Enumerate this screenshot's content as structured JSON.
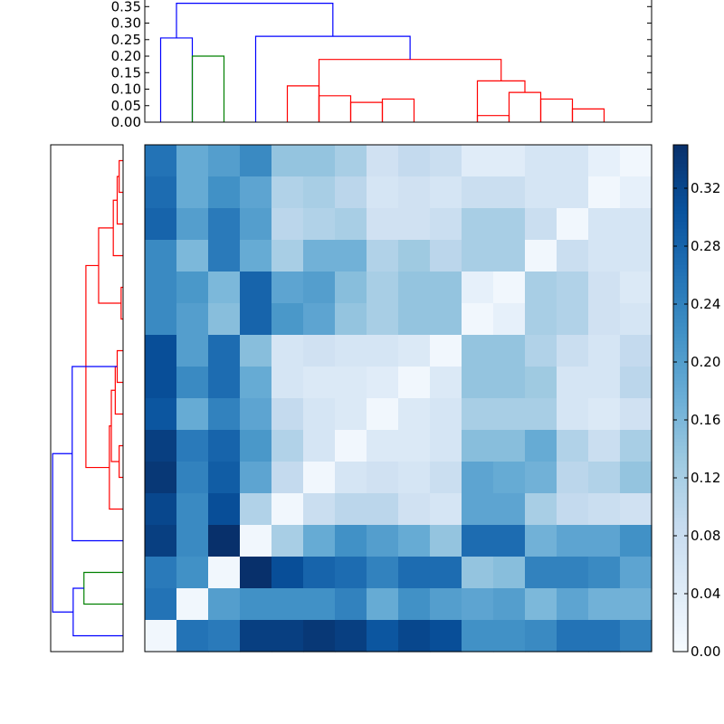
{
  "chart_data": {
    "type": "heatmap",
    "title": "",
    "xlabel": "",
    "ylabel": "",
    "n": 16,
    "matrix": [
      [
        0.26,
        0.18,
        0.2,
        0.23,
        0.14,
        0.14,
        0.12,
        0.07,
        0.09,
        0.08,
        0.04,
        0.04,
        0.06,
        0.06,
        0.03,
        0.01
      ],
      [
        0.27,
        0.18,
        0.22,
        0.19,
        0.11,
        0.12,
        0.1,
        0.06,
        0.07,
        0.06,
        0.08,
        0.08,
        0.06,
        0.06,
        0.01,
        0.03
      ],
      [
        0.28,
        0.2,
        0.25,
        0.2,
        0.1,
        0.11,
        0.12,
        0.07,
        0.07,
        0.08,
        0.12,
        0.12,
        0.08,
        0.01,
        0.06,
        0.06
      ],
      [
        0.23,
        0.16,
        0.25,
        0.18,
        0.12,
        0.17,
        0.17,
        0.11,
        0.13,
        0.1,
        0.12,
        0.12,
        0.01,
        0.08,
        0.06,
        0.06
      ],
      [
        0.23,
        0.21,
        0.16,
        0.28,
        0.19,
        0.2,
        0.15,
        0.12,
        0.14,
        0.14,
        0.03,
        0.01,
        0.12,
        0.11,
        0.07,
        0.05
      ],
      [
        0.23,
        0.2,
        0.15,
        0.28,
        0.21,
        0.19,
        0.14,
        0.12,
        0.14,
        0.14,
        0.01,
        0.03,
        0.12,
        0.11,
        0.07,
        0.06
      ],
      [
        0.31,
        0.2,
        0.27,
        0.15,
        0.06,
        0.07,
        0.06,
        0.06,
        0.05,
        0.01,
        0.14,
        0.14,
        0.11,
        0.08,
        0.06,
        0.09
      ],
      [
        0.31,
        0.23,
        0.27,
        0.18,
        0.06,
        0.05,
        0.05,
        0.04,
        0.01,
        0.05,
        0.14,
        0.14,
        0.13,
        0.06,
        0.06,
        0.1
      ],
      [
        0.3,
        0.18,
        0.24,
        0.19,
        0.09,
        0.06,
        0.05,
        0.01,
        0.05,
        0.06,
        0.12,
        0.12,
        0.12,
        0.06,
        0.05,
        0.07
      ],
      [
        0.33,
        0.25,
        0.28,
        0.21,
        0.11,
        0.06,
        0.01,
        0.05,
        0.05,
        0.06,
        0.15,
        0.15,
        0.18,
        0.11,
        0.08,
        0.12
      ],
      [
        0.34,
        0.24,
        0.29,
        0.19,
        0.09,
        0.01,
        0.06,
        0.07,
        0.06,
        0.08,
        0.19,
        0.18,
        0.17,
        0.1,
        0.11,
        0.14
      ],
      [
        0.32,
        0.23,
        0.31,
        0.11,
        0.01,
        0.08,
        0.1,
        0.1,
        0.07,
        0.06,
        0.19,
        0.19,
        0.12,
        0.09,
        0.08,
        0.07
      ],
      [
        0.33,
        0.23,
        0.35,
        0.01,
        0.12,
        0.18,
        0.22,
        0.2,
        0.18,
        0.14,
        0.27,
        0.27,
        0.17,
        0.19,
        0.19,
        0.22
      ],
      [
        0.25,
        0.22,
        0.01,
        0.35,
        0.31,
        0.28,
        0.27,
        0.24,
        0.27,
        0.27,
        0.14,
        0.15,
        0.24,
        0.24,
        0.23,
        0.19
      ],
      [
        0.26,
        0.01,
        0.2,
        0.22,
        0.22,
        0.22,
        0.24,
        0.18,
        0.22,
        0.2,
        0.19,
        0.2,
        0.16,
        0.19,
        0.17,
        0.17
      ],
      [
        0.01,
        0.26,
        0.25,
        0.33,
        0.33,
        0.34,
        0.33,
        0.3,
        0.32,
        0.31,
        0.22,
        0.22,
        0.23,
        0.26,
        0.26,
        0.24
      ]
    ],
    "colorbar": {
      "min": 0.0,
      "max": 0.35,
      "ticks": [
        "0.00",
        "0.04",
        "0.08",
        "0.12",
        "0.16",
        "0.20",
        "0.24",
        "0.28",
        "0.32"
      ],
      "tick_values": [
        0.0,
        0.04,
        0.08,
        0.12,
        0.16,
        0.2,
        0.24,
        0.28,
        0.32
      ],
      "colormap": "Blues"
    },
    "top_dendrogram": {
      "ylim": [
        0,
        0.37
      ],
      "yticks": [
        "0.00",
        "0.05",
        "0.10",
        "0.15",
        "0.20",
        "0.25",
        "0.30",
        "0.35"
      ],
      "ytick_values": [
        0.0,
        0.05,
        0.1,
        0.15,
        0.2,
        0.25,
        0.3,
        0.35
      ],
      "links": [
        {
          "x": [
            0.5,
            1.5
          ],
          "h": 0.255,
          "color": "#0000ff"
        },
        {
          "x": [
            1.5,
            2.5
          ],
          "h": 0.2,
          "color": "#008000"
        },
        {
          "x": [
            7.5,
            8.5
          ],
          "h": 0.07,
          "color": "#ff0000"
        },
        {
          "x": [
            6.5,
            7.5
          ],
          "h": 0.06,
          "color": "#ff0000"
        },
        {
          "x": [
            5.5,
            6.5
          ],
          "h": 0.08,
          "color": "#ff0000"
        },
        {
          "x": [
            4.5,
            5.5
          ],
          "h": 0.11,
          "color": "#ff0000"
        },
        {
          "x": [
            10.5,
            11.5
          ],
          "h": 0.02,
          "color": "#ff0000"
        },
        {
          "x": [
            13.5,
            14.5
          ],
          "h": 0.04,
          "color": "#ff0000"
        },
        {
          "x": [
            12.5,
            13.5
          ],
          "h": 0.07,
          "color": "#ff0000"
        },
        {
          "x": [
            11.5,
            12.5
          ],
          "h": 0.09,
          "color": "#ff0000"
        },
        {
          "x": [
            10.5,
            12.0
          ],
          "h": 0.125,
          "color": "#ff0000"
        },
        {
          "x": [
            5.5,
            11.25
          ],
          "h": 0.19,
          "color": "#ff0000"
        },
        {
          "x": [
            3.5,
            8.375
          ],
          "h": 0.26,
          "color": "#0000ff"
        },
        {
          "x": [
            1.0,
            5.9375
          ],
          "h": 0.36,
          "color": "#0000ff"
        }
      ]
    },
    "left_dendrogram": {
      "links": [
        {
          "y": [
            0.5,
            1.5
          ],
          "h": 0.02,
          "color": "#ff0000"
        },
        {
          "y": [
            1.0,
            2.5
          ],
          "h": 0.03,
          "color": "#ff0000"
        },
        {
          "y": [
            1.75,
            3.5
          ],
          "h": 0.05,
          "color": "#ff0000"
        },
        {
          "y": [
            4.5,
            5.5
          ],
          "h": 0.01,
          "color": "#ff0000"
        },
        {
          "y": [
            2.625,
            5.0
          ],
          "h": 0.125,
          "color": "#ff0000"
        },
        {
          "y": [
            6.5,
            7.5
          ],
          "h": 0.03,
          "color": "#ff0000"
        },
        {
          "y": [
            7.0,
            8.5
          ],
          "h": 0.04,
          "color": "#ff0000"
        },
        {
          "y": [
            9.5,
            10.5
          ],
          "h": 0.02,
          "color": "#ff0000"
        },
        {
          "y": [
            7.75,
            10.0
          ],
          "h": 0.06,
          "color": "#ff0000"
        },
        {
          "y": [
            8.875,
            11.5
          ],
          "h": 0.07,
          "color": "#ff0000"
        },
        {
          "y": [
            3.8125,
            10.1875
          ],
          "h": 0.19,
          "color": "#ff0000"
        },
        {
          "y": [
            7.0,
            12.5
          ],
          "h": 0.26,
          "color": "#0000ff"
        },
        {
          "y": [
            13.5,
            14.5
          ],
          "h": 0.2,
          "color": "#008000"
        },
        {
          "y": [
            14.0,
            15.5
          ],
          "h": 0.255,
          "color": "#0000ff"
        },
        {
          "y": [
            9.75,
            14.75
          ],
          "h": 0.36,
          "color": "#0000ff"
        }
      ],
      "hmax": 0.37
    }
  }
}
